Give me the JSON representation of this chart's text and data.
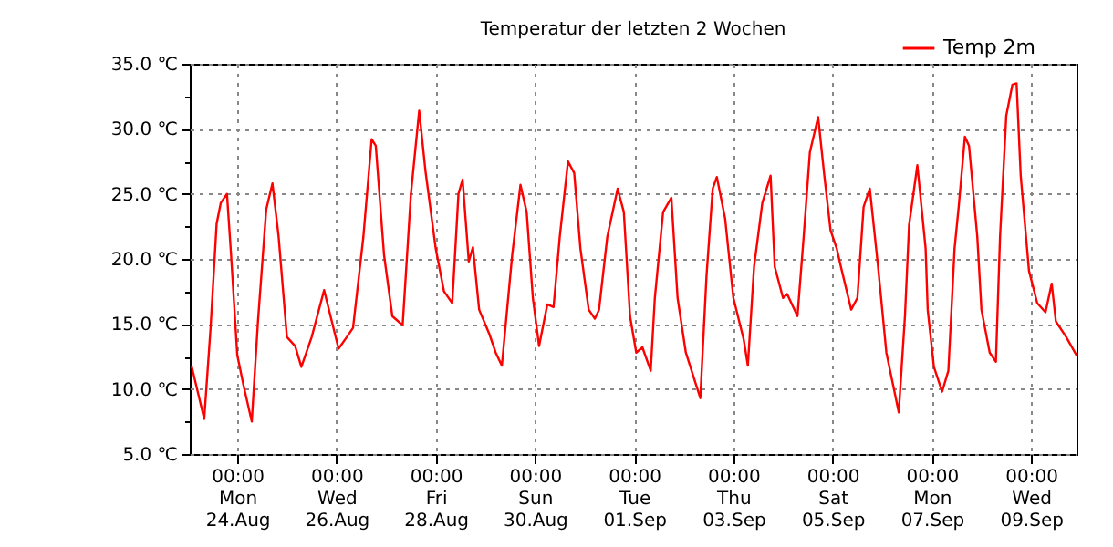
{
  "chart_data": {
    "type": "line",
    "title": "Temperatur der letzten 2 Wochen",
    "x": [
      "--08-23T02:00",
      "--08-23T08:00",
      "--08-23T11:00",
      "--08-23T14:00",
      "--08-23T16:00",
      "--08-23T19:00",
      "--08-23T21:00",
      "--08-24T00:00",
      "--08-24T03:00",
      "--08-24T07:00",
      "--08-24T10:00",
      "--08-24T14:00",
      "--08-24T17:00",
      "--08-24T20:00",
      "--08-25T00:00",
      "--08-25T04:00",
      "--08-25T07:00",
      "--08-25T12:00",
      "--08-25T18:00",
      "--08-26T01:00",
      "--08-26T05:00",
      "--08-26T08:00",
      "--08-26T13:00",
      "--08-26T17:00",
      "--08-26T19:00",
      "--08-26T23:00",
      "--08-27T03:00",
      "--08-27T08:00",
      "--08-27T12:00",
      "--08-27T16:00",
      "--08-27T19:00",
      "--08-28T00:00",
      "--08-28T04:00",
      "--08-28T08:00",
      "--08-28T11:00",
      "--08-28T13:00",
      "--08-28T16:00",
      "--08-28T18:00",
      "--08-28T21:00",
      "--08-29T02:00",
      "--08-29T05:00",
      "--08-29T08:00",
      "--08-29T13:00",
      "--08-29T17:00",
      "--08-29T20:00",
      "--08-29T23:00",
      "--08-30T02:00",
      "--08-30T06:00",
      "--08-30T09:00",
      "--08-30T12:00",
      "--08-30T16:00",
      "--08-30T19:00",
      "--08-30T22:00",
      "--08-31T02:00",
      "--08-31T05:00",
      "--08-31T07:00",
      "--08-31T11:00",
      "--08-31T16:00",
      "--08-31T19:00",
      "--08-31T22:00",
      "--09-01T01:00",
      "--09-01T04:00",
      "--09-01T08:00",
      "--09-01T10:00",
      "--09-01T14:00",
      "--09-01T18:00",
      "--09-01T21:00",
      "--09-02T01:00",
      "--09-02T08:00",
      "--09-02T11:00",
      "--09-02T14:00",
      "--09-02T16:00",
      "--09-02T20:00",
      "--09-03T00:00",
      "--09-03T05:00",
      "--09-03T07:00",
      "--09-03T10:00",
      "--09-03T14:00",
      "--09-03T18:00",
      "--09-03T20:00",
      "--09-04T00:00",
      "--09-04T02:00",
      "--09-04T07:00",
      "--09-04T10:00",
      "--09-04T13:00",
      "--09-04T17:00",
      "--09-04T20:00",
      "--09-04T23:00",
      "--09-05T02:00",
      "--09-05T04:00",
      "--09-05T09:00",
      "--09-05T12:00",
      "--09-05T15:00",
      "--09-05T18:00",
      "--09-05T22:00",
      "--09-06T02:00",
      "--09-06T05:00",
      "--09-06T08:00",
      "--09-06T11:00",
      "--09-06T13:00",
      "--09-06T17:00",
      "--09-06T21:00",
      "--09-06T22:00",
      "--09-07T01:00",
      "--09-07T05:00",
      "--09-07T08:00",
      "--09-07T11:00",
      "--09-07T13:00",
      "--09-07T16:00",
      "--09-07T18:00",
      "--09-07T22:00",
      "--09-08T00:00",
      "--09-08T04:00",
      "--09-08T07:00",
      "--09-08T09:00",
      "--09-08T12:00",
      "--09-08T15:00",
      "--09-08T17:00",
      "--09-08T19:00",
      "--09-08T23:00",
      "--09-09T03:00",
      "--09-09T07:00",
      "--09-09T10:00",
      "--09-09T12:00",
      "--09-09T17:00",
      "--09-09T22:00"
    ],
    "series": [
      {
        "name": "Temp 2m",
        "color": "#ff0000",
        "values": [
          11.7,
          7.7,
          14.5,
          22.7,
          24.3,
          25.0,
          20.3,
          12.6,
          10.3,
          7.5,
          15.2,
          23.8,
          25.8,
          21.7,
          14.0,
          13.3,
          11.7,
          14.0,
          17.6,
          13.1,
          14.0,
          14.7,
          21.7,
          29.2,
          28.7,
          20.3,
          15.6,
          14.9,
          25.0,
          31.4,
          26.8,
          20.8,
          17.5,
          16.6,
          25.0,
          26.1,
          19.8,
          20.9,
          16.1,
          14.2,
          12.8,
          11.8,
          20.3,
          25.7,
          23.6,
          17.0,
          13.3,
          16.5,
          16.3,
          21.7,
          27.5,
          26.6,
          20.8,
          16.1,
          15.4,
          16.1,
          21.7,
          25.4,
          23.6,
          15.6,
          12.8,
          13.2,
          11.4,
          17.0,
          23.6,
          24.7,
          17.0,
          12.8,
          9.3,
          18.7,
          25.4,
          26.3,
          23.1,
          17.0,
          13.8,
          11.8,
          19.4,
          24.3,
          26.4,
          19.4,
          17.0,
          17.3,
          15.6,
          21.7,
          28.2,
          30.9,
          26.4,
          22.2,
          20.8,
          19.4,
          16.1,
          17.0,
          24.0,
          25.4,
          19.4,
          12.8,
          10.5,
          8.2,
          15.6,
          22.6,
          27.2,
          20.8,
          16.1,
          11.7,
          9.8,
          11.4,
          20.8,
          24.0,
          29.4,
          28.7,
          21.7,
          16.1,
          12.8,
          12.1,
          21.7,
          31.0,
          33.4,
          33.5,
          26.4,
          19.1,
          16.6,
          15.9,
          18.1,
          15.2,
          14.0,
          12.6
        ]
      }
    ],
    "xlim": [
      "--08-23T01:00",
      "--09-09T22:00"
    ],
    "xticks": [
      {
        "value": "--08-24T00:00",
        "label": "00:00\nMon\n24.Aug"
      },
      {
        "value": "--08-26T00:00",
        "label": "00:00\nWed\n26.Aug"
      },
      {
        "value": "--08-28T00:00",
        "label": "00:00\nFri\n28.Aug"
      },
      {
        "value": "--08-30T00:00",
        "label": "00:00\nSun\n30.Aug"
      },
      {
        "value": "--09-01T00:00",
        "label": "00:00\nTue\n01.Sep"
      },
      {
        "value": "--09-03T00:00",
        "label": "00:00\nThu\n03.Sep"
      },
      {
        "value": "--09-05T00:00",
        "label": "00:00\nSat\n05.Sep"
      },
      {
        "value": "--09-07T00:00",
        "label": "00:00\nMon\n07.Sep"
      },
      {
        "value": "--09-09T00:00",
        "label": "00:00\nWed\n09.Sep"
      }
    ],
    "ylim": [
      5,
      35
    ],
    "yticks": [
      {
        "value": 5,
        "label": "5.0 ℃"
      },
      {
        "value": 7.5,
        "label": null
      },
      {
        "value": 10,
        "label": "10.0 ℃"
      },
      {
        "value": 12.5,
        "label": null
      },
      {
        "value": 15,
        "label": "15.0 ℃"
      },
      {
        "value": 17.5,
        "label": null
      },
      {
        "value": 20,
        "label": "20.0 ℃"
      },
      {
        "value": 22.5,
        "label": null
      },
      {
        "value": 25,
        "label": "25.0 ℃"
      },
      {
        "value": 27.5,
        "label": null
      },
      {
        "value": 30,
        "label": "30.0 ℃"
      },
      {
        "value": 32.5,
        "label": null
      },
      {
        "value": 35,
        "label": "35.0 ℃"
      }
    ],
    "grid": true,
    "legend": "top right",
    "marker": "none",
    "line_style": "solid"
  }
}
